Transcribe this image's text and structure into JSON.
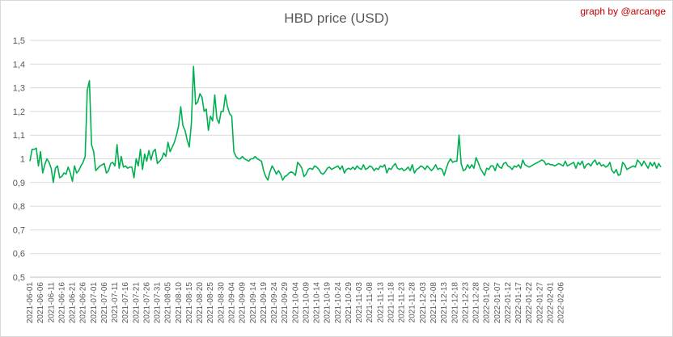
{
  "chart_data": {
    "type": "line",
    "title": "HBD price (USD)",
    "credit": "graph by @arcange",
    "xlabel": "",
    "ylabel": "",
    "ylim": [
      0.5,
      1.5
    ],
    "yticks": [
      "0,5",
      "0,6",
      "0,7",
      "0,8",
      "0,9",
      "1",
      "1,1",
      "1,2",
      "1,3",
      "1,4",
      "1,5"
    ],
    "start_date": "2021-06-01",
    "xticks": [
      "2021-06-01",
      "2021-06-06",
      "2021-06-11",
      "2021-06-16",
      "2021-06-21",
      "2021-06-26",
      "2021-07-01",
      "2021-07-06",
      "2021-07-11",
      "2021-07-16",
      "2021-07-21",
      "2021-07-26",
      "2021-07-31",
      "2021-08-05",
      "2021-08-10",
      "2021-08-15",
      "2021-08-20",
      "2021-08-25",
      "2021-08-30",
      "2021-09-04",
      "2021-09-09",
      "2021-09-14",
      "2021-09-19",
      "2021-09-24",
      "2021-09-29",
      "2021-10-04",
      "2021-10-09",
      "2021-10-14",
      "2021-10-19",
      "2021-10-24",
      "2021-10-29",
      "2021-11-03",
      "2021-11-08",
      "2021-11-13",
      "2021-11-18",
      "2021-11-23",
      "2021-11-28",
      "2021-12-03",
      "2021-12-08",
      "2021-12-13",
      "2021-12-18",
      "2021-12-23",
      "2021-12-28",
      "2022-01-02",
      "2022-01-07",
      "2022-01-12",
      "2022-01-17",
      "2022-01-22",
      "2022-01-27",
      "2022-02-01",
      "2022-02-06"
    ],
    "grid": true,
    "legend": "none",
    "color": "#00b050",
    "series": [
      {
        "name": "",
        "values": [
          0.99,
          1.04,
          1.04,
          1.045,
          0.97,
          1.03,
          0.94,
          0.975,
          1.0,
          0.985,
          0.96,
          0.9,
          0.96,
          0.97,
          0.92,
          0.925,
          0.94,
          0.935,
          0.965,
          0.94,
          0.905,
          0.97,
          0.94,
          0.95,
          0.97,
          0.985,
          1.01,
          1.29,
          1.33,
          1.06,
          1.03,
          0.95,
          0.96,
          0.97,
          0.975,
          0.98,
          0.94,
          0.95,
          0.98,
          0.985,
          0.97,
          1.06,
          0.96,
          1.01,
          0.965,
          0.97,
          0.96,
          0.965,
          0.965,
          0.92,
          1.0,
          0.97,
          1.04,
          0.955,
          1.02,
          0.99,
          1.035,
          0.995,
          1.03,
          1.04,
          0.98,
          0.99,
          1.0,
          1.025,
          1.01,
          1.07,
          1.03,
          1.05,
          1.07,
          1.1,
          1.14,
          1.22,
          1.14,
          1.12,
          1.08,
          1.05,
          1.15,
          1.39,
          1.23,
          1.24,
          1.275,
          1.26,
          1.2,
          1.21,
          1.12,
          1.18,
          1.16,
          1.27,
          1.17,
          1.15,
          1.2,
          1.2,
          1.27,
          1.22,
          1.19,
          1.18,
          1.03,
          1.01,
          1.0,
          1.0,
          1.01,
          1.0,
          0.995,
          0.99,
          1.0,
          1.0,
          1.01,
          1.0,
          0.995,
          0.99,
          0.95,
          0.925,
          0.91,
          0.945,
          0.97,
          0.955,
          0.935,
          0.95,
          0.935,
          0.91,
          0.925,
          0.93,
          0.94,
          0.945,
          0.94,
          0.93,
          0.985,
          0.975,
          0.96,
          0.925,
          0.935,
          0.955,
          0.96,
          0.955,
          0.97,
          0.965,
          0.955,
          0.94,
          0.935,
          0.945,
          0.96,
          0.965,
          0.955,
          0.96,
          0.965,
          0.97,
          0.955,
          0.97,
          0.94,
          0.955,
          0.96,
          0.955,
          0.965,
          0.955,
          0.97,
          0.96,
          0.955,
          0.975,
          0.955,
          0.96,
          0.97,
          0.965,
          0.95,
          0.96,
          0.955,
          0.97,
          0.965,
          0.975,
          0.94,
          0.96,
          0.955,
          0.97,
          0.98,
          0.96,
          0.955,
          0.96,
          0.95,
          0.955,
          0.965,
          0.95,
          0.975,
          0.94,
          0.955,
          0.96,
          0.97,
          0.965,
          0.955,
          0.97,
          0.96,
          0.95,
          0.96,
          0.975,
          0.955,
          0.96,
          0.955,
          0.93,
          0.96,
          0.985,
          1.0,
          0.985,
          0.99,
          0.99,
          1.1,
          0.98,
          0.95,
          0.955,
          0.975,
          0.96,
          0.975,
          0.96,
          1.005,
          0.985,
          0.96,
          0.945,
          0.93,
          0.96,
          0.955,
          0.97,
          0.97,
          0.95,
          0.98,
          0.965,
          0.96,
          0.98,
          0.985,
          0.97,
          0.965,
          0.955,
          0.97,
          0.965,
          0.975,
          0.96,
          0.995,
          0.975,
          0.97,
          0.965,
          0.97,
          0.975,
          0.98,
          0.985,
          0.99,
          0.995,
          0.99,
          0.975,
          0.98,
          0.975,
          0.975,
          0.97,
          0.975,
          0.98,
          0.975,
          0.97,
          0.99,
          0.97,
          0.975,
          0.98,
          0.985,
          0.96,
          0.985,
          0.975,
          0.99,
          0.96,
          0.975,
          0.98,
          0.97,
          0.985,
          0.995,
          0.975,
          0.985,
          0.97,
          0.975,
          0.965,
          0.97,
          0.985,
          0.95,
          0.94,
          0.955,
          0.93,
          0.935,
          0.985,
          0.975,
          0.955,
          0.96,
          0.965,
          0.97,
          0.965,
          0.995,
          0.985,
          0.97,
          0.99,
          0.975,
          0.96,
          0.985,
          0.97,
          0.985,
          0.96,
          0.98,
          0.965
        ]
      }
    ]
  }
}
